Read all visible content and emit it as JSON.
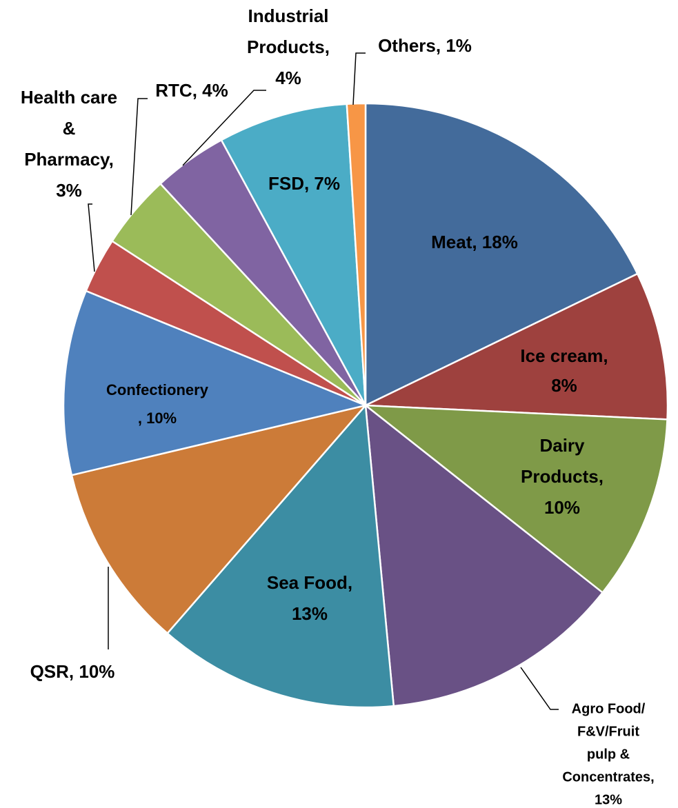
{
  "chart_data": {
    "type": "pie",
    "values": [
      18,
      8,
      10,
      13,
      13,
      10,
      10,
      3,
      4,
      4,
      7,
      1
    ],
    "value_labels": [
      [
        "Meat, 18%"
      ],
      [
        "Ice cream,",
        "8%"
      ],
      [
        "Dairy",
        "Products,",
        "10%"
      ],
      [
        "Agro Food/",
        "F&V/Fruit",
        "pulp &",
        "Concentrates,",
        "13%"
      ],
      [
        "Sea Food,",
        "13%"
      ],
      [
        "QSR, 10%"
      ],
      [
        "Confectionery",
        ", 10%"
      ],
      [
        "Health care",
        "&",
        "Pharmacy,",
        "3%"
      ],
      [
        "RTC, 4%"
      ],
      [
        "Industrial",
        "Products,",
        "4%"
      ],
      [
        "FSD, 7%"
      ],
      [
        "Others, 1%"
      ]
    ],
    "colors": [
      "#436b9b",
      "#9e413e",
      "#7f9a48",
      "#695185",
      "#3c8da3",
      "#cc7b38",
      "#4f81bd",
      "#c0504d",
      "#9bbb59",
      "#8064a2",
      "#4bacc6",
      "#f79646"
    ]
  }
}
